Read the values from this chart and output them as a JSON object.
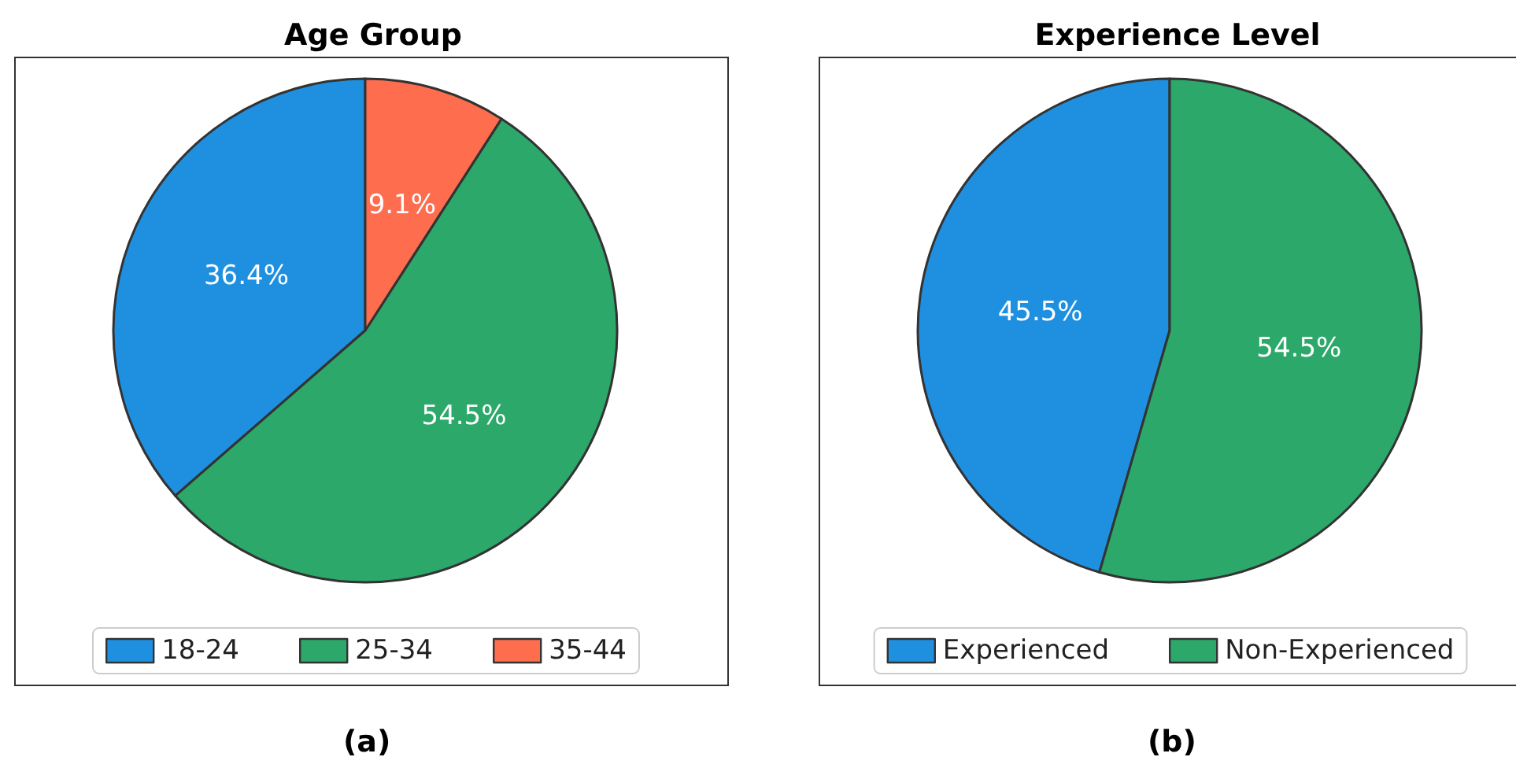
{
  "chart_data": [
    {
      "type": "pie",
      "title": "Age Group",
      "categories": [
        "18-24",
        "25-34",
        "35-44"
      ],
      "values": [
        36.4,
        54.5,
        9.1
      ],
      "colors": [
        "#1f90e0",
        "#2ca86a",
        "#ff6d4f"
      ],
      "value_labels": [
        "36.4%",
        "54.5%",
        "9.1%"
      ],
      "legend": "bottom",
      "annotations": [
        "(a)"
      ]
    },
    {
      "type": "pie",
      "title": "Experience Level",
      "categories": [
        "Experienced",
        "Non-Experienced"
      ],
      "values": [
        45.5,
        54.5
      ],
      "colors": [
        "#1f90e0",
        "#2ca86a"
      ],
      "value_labels": [
        "45.5%",
        "54.5%"
      ],
      "legend": "bottom",
      "annotations": [
        "(b)"
      ]
    }
  ]
}
